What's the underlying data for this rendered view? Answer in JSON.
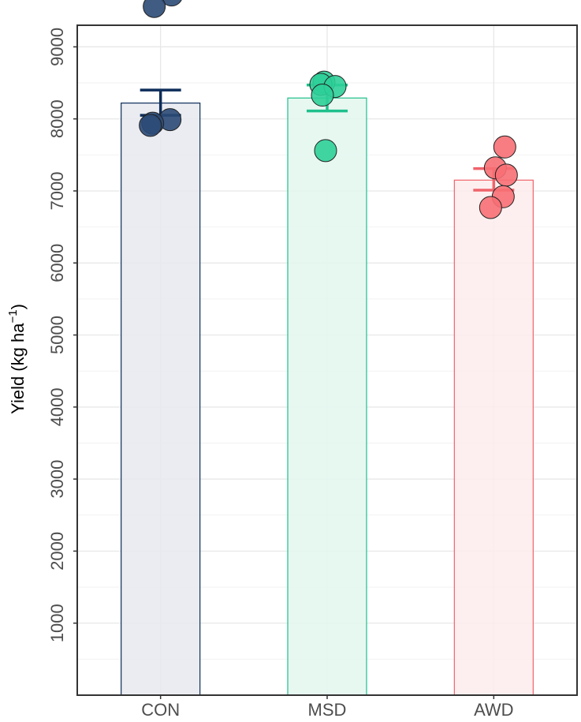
{
  "chart_data": {
    "type": "bar",
    "ylabel": "Yield (kg ha",
    "ylabel_sup": "−1",
    "ylabel_close": ")",
    "xlabel": "",
    "ylim": [
      0,
      9300
    ],
    "yticks": [
      1000,
      2000,
      3000,
      4000,
      5000,
      6000,
      7000,
      8000,
      9000
    ],
    "grid": true,
    "categories": [
      "CON",
      "MSD",
      "AWD"
    ],
    "colors": [
      "#0d2d5a",
      "#1fc08c",
      "#f0636b"
    ],
    "fill_colors": [
      "#e6e9ee",
      "#e3f7ef",
      "#fdecec"
    ],
    "point_colors": [
      "#2b4a75",
      "#2ecf98",
      "#f76f74"
    ],
    "values": [
      8220,
      8290,
      7150
    ],
    "errors": [
      {
        "low": 8050,
        "high": 8400
      },
      {
        "low": 8110,
        "high": 8470
      },
      {
        "low": 7010,
        "high": 7310
      }
    ],
    "points": [
      [
        9720,
        9560,
        7990,
        7940,
        7910
      ],
      [
        8510,
        8480,
        8450,
        8330,
        7560
      ],
      [
        7610,
        7320,
        7220,
        6920,
        6770
      ]
    ]
  }
}
